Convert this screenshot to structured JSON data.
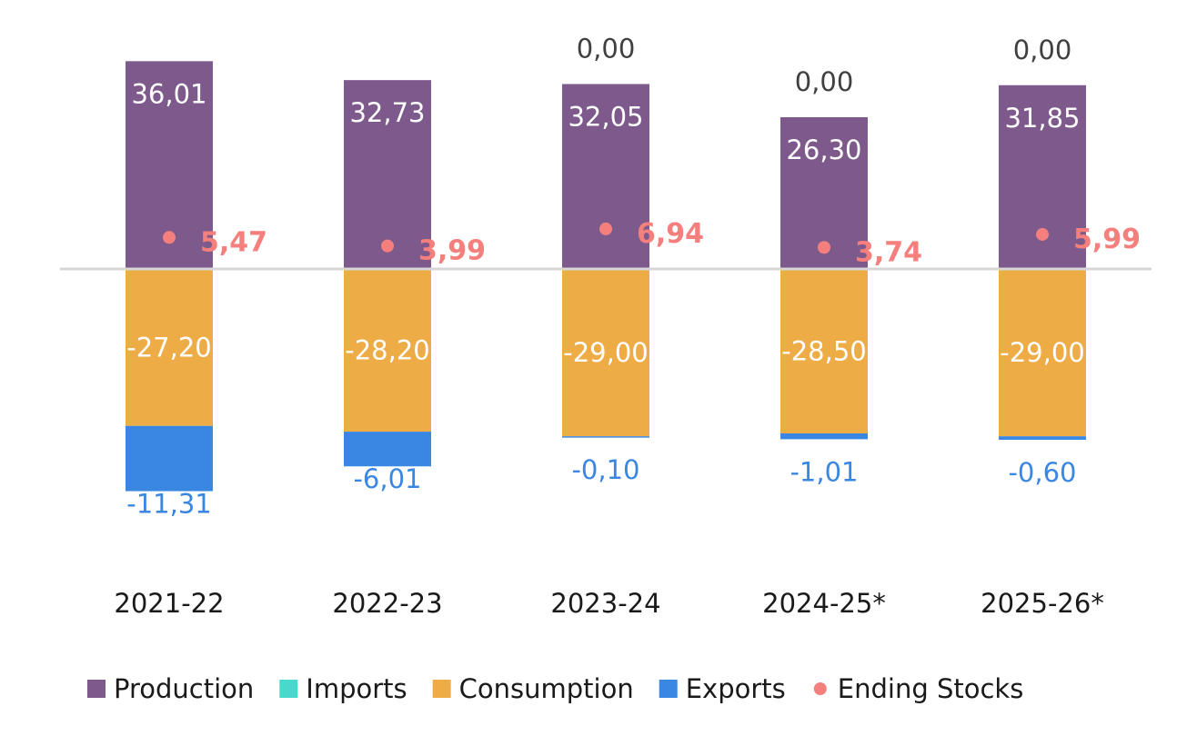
{
  "chart_data": {
    "type": "bar",
    "stacked": true,
    "categories": [
      "2021-22",
      "2022-23",
      "2023-24",
      "2024-25*",
      "2025-26*"
    ],
    "series": [
      {
        "name": "Production",
        "color": "#7e5a8c",
        "values": [
          36.01,
          32.73,
          32.05,
          26.3,
          31.85
        ],
        "labels": [
          "36,01",
          "32,73",
          "32,05",
          "26,30",
          "31,85"
        ]
      },
      {
        "name": "Imports",
        "color": "#48d8cc",
        "values": [
          null,
          null,
          0.0,
          0.0,
          0.0
        ],
        "labels": [
          "",
          "",
          "0,00",
          "0,00",
          "0,00"
        ]
      },
      {
        "name": "Consumption",
        "color": "#eeac47",
        "values": [
          -27.2,
          -28.2,
          -29.0,
          -28.5,
          -29.0
        ],
        "labels": [
          "-27,20",
          "-28,20",
          "-29,00",
          "-28,50",
          "-29,00"
        ]
      },
      {
        "name": "Exports",
        "color": "#3a87e2",
        "values": [
          -11.31,
          -6.01,
          -0.1,
          -1.01,
          -0.6
        ],
        "labels": [
          "-11,31",
          "-6,01",
          "-0,10",
          "-1,01",
          "-0,60"
        ]
      },
      {
        "name": "Ending Stocks",
        "type": "scatter",
        "color": "#f47f7c",
        "values": [
          5.47,
          3.99,
          6.94,
          3.74,
          5.99
        ],
        "labels": [
          "5,47",
          "3,99",
          "6,94",
          "3,74",
          "5,99"
        ]
      }
    ],
    "title": "",
    "xlabel": "",
    "ylabel": "",
    "ylim": [
      -45,
      42
    ],
    "grid": false,
    "legend_position": "bottom"
  }
}
